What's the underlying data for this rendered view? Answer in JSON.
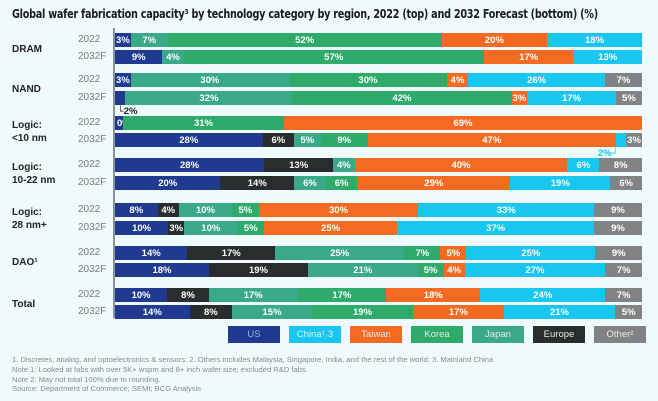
{
  "chart_data": {
    "type": "bar",
    "orientation": "horizontal-stacked-100",
    "title": "Global wafer fabrication capacity³ by technology category by region, 2022 (top) and 2032 Forecast (bottom) (%)",
    "xlabel": "",
    "ylabel": "",
    "xlim": [
      0,
      100
    ],
    "segment_order": [
      "US",
      "Europe",
      "Japan",
      "Korea",
      "Taiwan",
      "China",
      "Other"
    ],
    "legend": [
      {
        "name": "US",
        "label": "US",
        "color": "#1f3a8f"
      },
      {
        "name": "China",
        "label": "China¹˒3",
        "color": "#19c6ef"
      },
      {
        "name": "Taiwan",
        "label": "Taiwan",
        "color": "#f36b22"
      },
      {
        "name": "Korea",
        "label": "Korea",
        "color": "#2eab6a"
      },
      {
        "name": "Japan",
        "label": "Japan",
        "color": "#3aa98a"
      },
      {
        "name": "Europe",
        "label": "Europe",
        "color": "#2a2d2e"
      },
      {
        "name": "Other",
        "label": "Other²",
        "color": "#808284"
      }
    ],
    "legend_position": "bottom",
    "categories": [
      {
        "label": "DRAM",
        "rows": [
          {
            "year": "2022",
            "values": {
              "US": 3,
              "Europe": 0,
              "Japan": 7,
              "Korea": 52,
              "Taiwan": 20,
              "China": 18,
              "Other": 0
            }
          },
          {
            "year": "2032F",
            "values": {
              "US": 9,
              "Europe": 0,
              "Japan": 4,
              "Korea": 57,
              "Taiwan": 17,
              "China": 13,
              "Other": 0
            }
          }
        ]
      },
      {
        "label": "NAND",
        "rows": [
          {
            "year": "2022",
            "values": {
              "US": 3,
              "Europe": 0,
              "Japan": 30,
              "Korea": 30,
              "Taiwan": 4,
              "China": 26,
              "Other": 7
            }
          },
          {
            "year": "2032F",
            "values": {
              "US": 2,
              "Europe": 0,
              "Japan": 32,
              "Korea": 42,
              "Taiwan": 3,
              "China": 17,
              "Other": 5
            },
            "callout": {
              "region": "US",
              "text": "2%",
              "side": "below-left"
            }
          }
        ]
      },
      {
        "label": "Logic: <10 nm",
        "rows": [
          {
            "year": "2022",
            "values": {
              "US": 0,
              "Europe": 0,
              "Japan": 0,
              "Korea": 31,
              "Taiwan": 69,
              "China": 0,
              "Other": 0
            },
            "show_zero": "US"
          },
          {
            "year": "2032F",
            "values": {
              "US": 28,
              "Europe": 6,
              "Japan": 5,
              "Korea": 9,
              "Taiwan": 47,
              "China": 2,
              "Other": 3
            },
            "callout": {
              "region": "China",
              "text": "2%",
              "side": "below-right"
            }
          }
        ]
      },
      {
        "label": "Logic: 10-22 nm",
        "rows": [
          {
            "year": "2022",
            "values": {
              "US": 28,
              "Europe": 13,
              "Japan": 4,
              "Korea": 0,
              "Taiwan": 40,
              "China": 6,
              "Other": 8
            }
          },
          {
            "year": "2032F",
            "values": {
              "US": 20,
              "Europe": 14,
              "Japan": 6,
              "Korea": 6,
              "Taiwan": 29,
              "China": 19,
              "Other": 6
            }
          }
        ]
      },
      {
        "label": "Logic: 28 nm+",
        "rows": [
          {
            "year": "2022",
            "values": {
              "US": 8,
              "Europe": 4,
              "Japan": 10,
              "Korea": 5,
              "Taiwan": 30,
              "China": 33,
              "Other": 9
            }
          },
          {
            "year": "2032F",
            "values": {
              "US": 10,
              "Europe": 3,
              "Japan": 10,
              "Korea": 5,
              "Taiwan": 25,
              "China": 37,
              "Other": 9
            }
          }
        ]
      },
      {
        "label": "DAO¹",
        "rows": [
          {
            "year": "2022",
            "values": {
              "US": 14,
              "Europe": 17,
              "Japan": 25,
              "Korea": 7,
              "Taiwan": 5,
              "China": 25,
              "Other": 9
            }
          },
          {
            "year": "2032F",
            "values": {
              "US": 18,
              "Europe": 19,
              "Japan": 21,
              "Korea": 5,
              "Taiwan": 4,
              "China": 27,
              "Other": 7
            }
          }
        ]
      },
      {
        "label": "Total",
        "rows": [
          {
            "year": "2022",
            "values": {
              "US": 10,
              "Europe": 8,
              "Japan": 17,
              "Korea": 17,
              "Taiwan": 18,
              "China": 24,
              "Other": 7
            }
          },
          {
            "year": "2032F",
            "values": {
              "US": 14,
              "Europe": 8,
              "Japan": 15,
              "Korea": 19,
              "Taiwan": 17,
              "China": 21,
              "Other": 5
            }
          }
        ]
      }
    ],
    "footnotes": [
      "1. Discretes, analog, and optoelectronics & sensors; 2. Others includes Malaysia, Singapore, India, and the rest of the world; 3. Mainland China",
      "Note 1: Looked at fabs with over 5K+ wspm and 8+ inch wafer size; excluded R&D fabs.",
      "Note 2: May not total 100% due to rounding.",
      "Source: Department of Commerce; SEMI; BCG Analysis"
    ]
  }
}
